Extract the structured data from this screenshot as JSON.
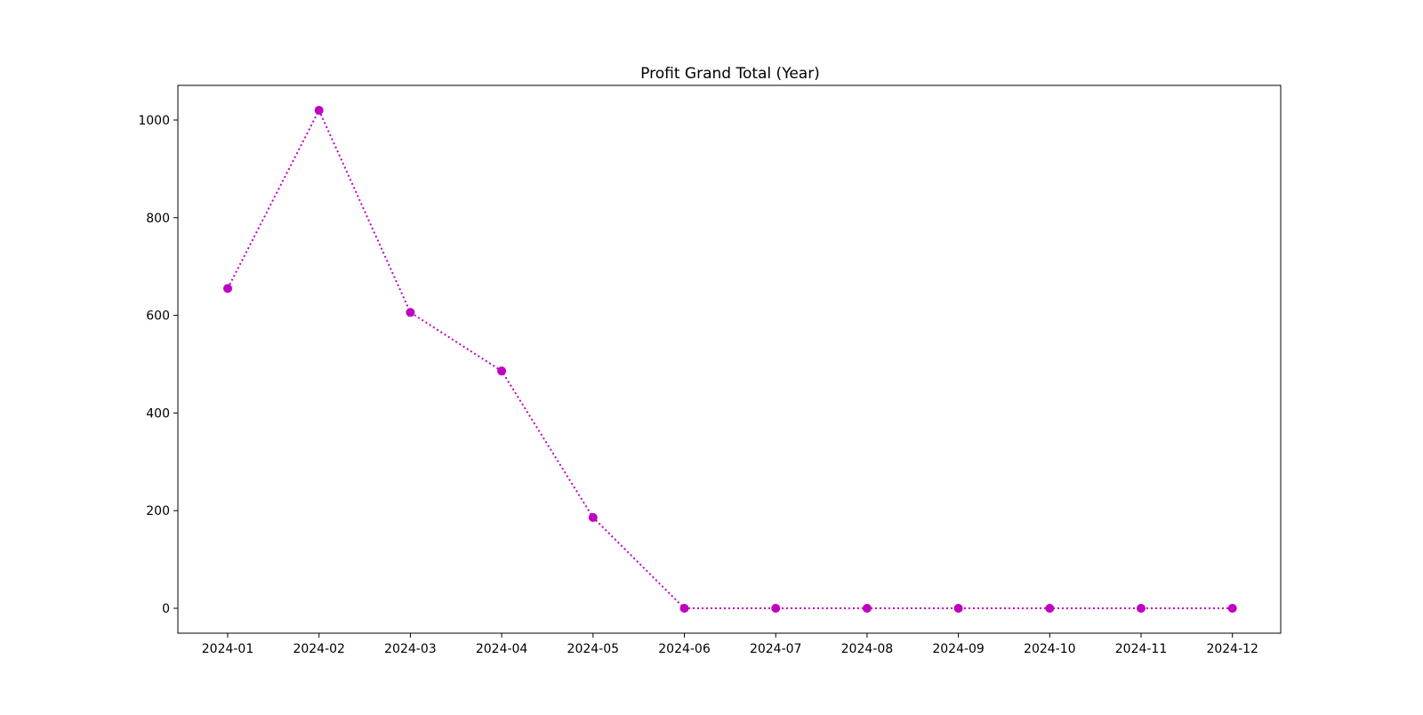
{
  "chart_data": {
    "type": "line",
    "title": "Profit Grand Total (Year)",
    "xlabel": "",
    "ylabel": "",
    "categories": [
      "2024-01",
      "2024-02",
      "2024-03",
      "2024-04",
      "2024-05",
      "2024-06",
      "2024-07",
      "2024-08",
      "2024-09",
      "2024-10",
      "2024-11",
      "2024-12"
    ],
    "series": [
      {
        "values": [
          655,
          1020,
          606,
          486,
          186,
          0,
          0,
          0,
          0,
          0,
          0,
          0
        ],
        "color": "#c000c0",
        "line_style": "dotted",
        "marker": "circle"
      }
    ],
    "yticks": [
      0,
      200,
      400,
      600,
      800,
      1000
    ],
    "ylim": [
      -51,
      1071
    ],
    "grid": false,
    "legend": "none"
  }
}
